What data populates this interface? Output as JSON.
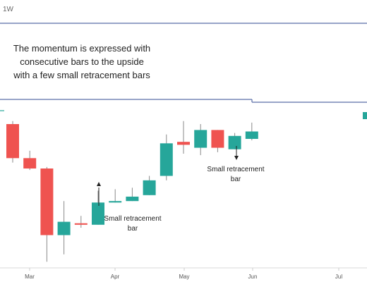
{
  "timeframe_label": "1W",
  "colors": {
    "up": "#26a69a",
    "down": "#ef5350",
    "wick": "#8a8a8a",
    "box_line": "#5b6ea8",
    "text": "#222222",
    "axis_text": "#555555",
    "grid": "#e6e6e6"
  },
  "annotations": {
    "main_line_1": "The momentum is expressed with",
    "main_line_2": "consecutive bars to the upside",
    "main_line_3": "with a few small retracement bars",
    "retrace_left_line_1": "Small retracement",
    "retrace_left_line_2": "bar",
    "retrace_right_line_1": "Small retracement",
    "retrace_right_line_2": "bar"
  },
  "chart_data": {
    "type": "candlestick",
    "x_ticks": [
      "Mar",
      "Apr",
      "May",
      "Jun",
      "Jul"
    ],
    "ylim": [
      0,
      100
    ],
    "grid": false,
    "candles": [
      {
        "o": 90,
        "h": 92,
        "l": 64,
        "c": 67
      },
      {
        "o": 67,
        "h": 72,
        "l": 59,
        "c": 60
      },
      {
        "o": 60,
        "h": 61,
        "l": -3,
        "c": 15
      },
      {
        "o": 15,
        "h": 38,
        "l": 2,
        "c": 24
      },
      {
        "o": 23,
        "h": 28,
        "l": 20,
        "c": 22
      },
      {
        "o": 22,
        "h": 45,
        "l": 22,
        "c": 37
      },
      {
        "o": 37,
        "h": 46,
        "l": 37,
        "c": 38
      },
      {
        "o": 38,
        "h": 47,
        "l": 38,
        "c": 41
      },
      {
        "o": 42,
        "h": 55,
        "l": 42,
        "c": 52
      },
      {
        "o": 55,
        "h": 83,
        "l": 52,
        "c": 77
      },
      {
        "o": 78,
        "h": 92,
        "l": 70,
        "c": 76
      },
      {
        "o": 74,
        "h": 90,
        "l": 69,
        "c": 86
      },
      {
        "o": 86,
        "h": 86,
        "l": 71,
        "c": 74
      },
      {
        "o": 73,
        "h": 84,
        "l": 73,
        "c": 82
      },
      {
        "o": 80,
        "h": 91,
        "l": 79,
        "c": 85
      }
    ]
  }
}
